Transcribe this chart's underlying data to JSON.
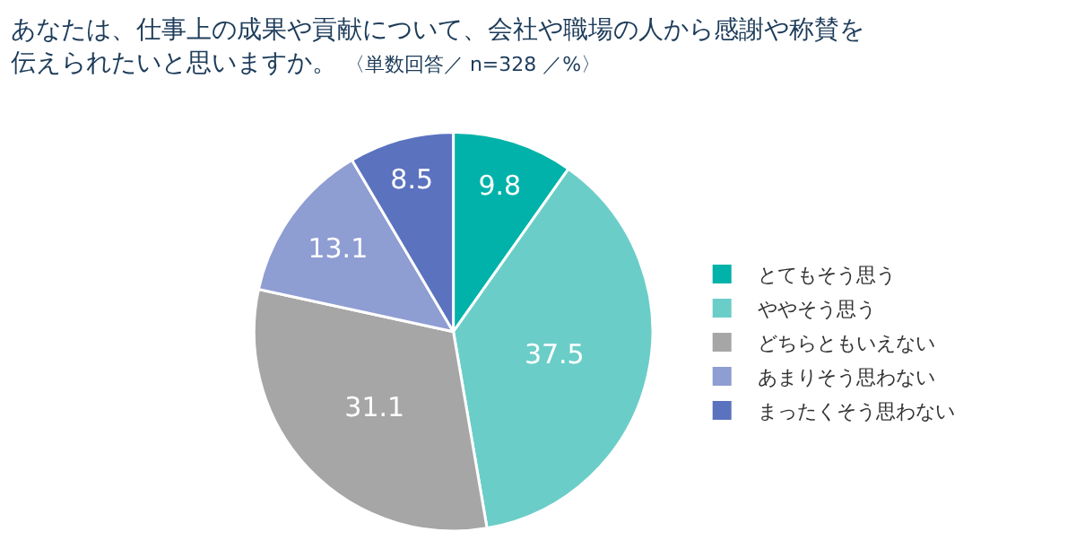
{
  "chart_data": {
    "type": "pie",
    "title": "あなたは、仕事上の成果や貢献について、会社や職場の人から感謝や称賛を伝えられたいと思いますか。",
    "subtitle": "〈単数回答／ n=328 ／%〉",
    "categories": [
      "とてもそう思う",
      "ややそう思う",
      "どちらともいえない",
      "あまりそう思わない",
      "まったくそう思わない"
    ],
    "values": [
      9.8,
      37.5,
      31.1,
      13.1,
      8.5
    ],
    "colors": [
      "#00b2a9",
      "#6bcdc8",
      "#a6a6a6",
      "#8e9dd2",
      "#5b72bf"
    ],
    "data_labels": true,
    "legend": "right"
  }
}
